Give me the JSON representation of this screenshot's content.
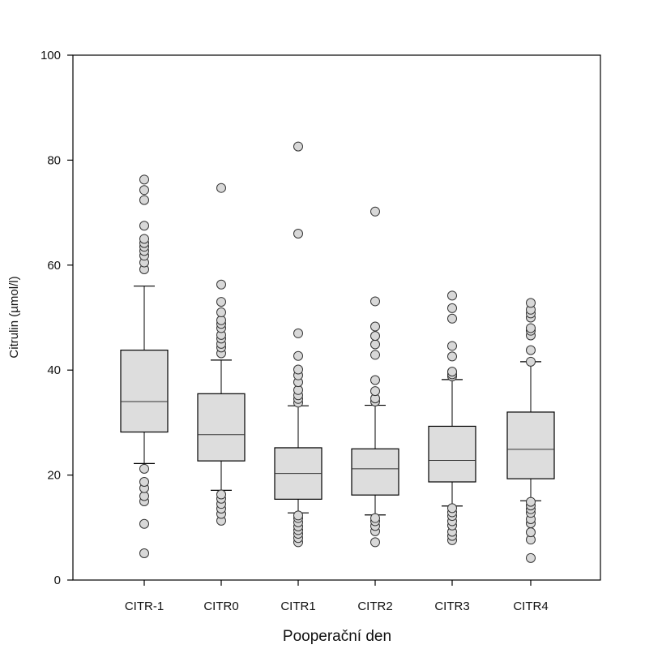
{
  "chart_data": {
    "type": "box",
    "title": "",
    "xlabel": "Pooperační den",
    "ylabel": "Citrulin (µmol/l)",
    "ylim": [
      0,
      100
    ],
    "yticks": [
      0,
      20,
      40,
      60,
      80,
      100
    ],
    "grid": false,
    "categories": [
      "CITR-1",
      "CITR0",
      "CITR1",
      "CITR2",
      "CITR3",
      "CITR4"
    ],
    "boxes": [
      {
        "category": "CITR-1",
        "whisker_low": 22.2,
        "q1": 28.2,
        "median": 34.0,
        "q3": 43.8,
        "whisker_high": 56.0,
        "outliers": [
          5.1,
          10.7,
          15.0,
          16.0,
          17.5,
          18.7,
          21.2,
          59.2,
          60.5,
          61.8,
          62.7,
          63.5,
          64.2,
          65.0,
          67.5,
          72.4,
          74.3,
          76.3
        ]
      },
      {
        "category": "CITR0",
        "whisker_low": 17.1,
        "q1": 22.7,
        "median": 27.7,
        "q3": 35.5,
        "whisker_high": 41.9,
        "outliers": [
          11.3,
          12.6,
          13.6,
          14.5,
          15.5,
          16.3,
          43.2,
          44.3,
          45.0,
          46.0,
          46.7,
          48.0,
          48.8,
          49.5,
          51.0,
          53.0,
          56.3,
          74.7
        ]
      },
      {
        "category": "CITR1",
        "whisker_low": 12.8,
        "q1": 15.4,
        "median": 20.3,
        "q3": 25.2,
        "whisker_high": 33.2,
        "outliers": [
          7.2,
          8.0,
          8.8,
          9.5,
          10.2,
          11.0,
          11.8,
          12.3,
          33.8,
          34.5,
          35.2,
          36.2,
          37.7,
          39.0,
          40.1,
          42.7,
          47.0,
          66.0,
          82.6
        ]
      },
      {
        "category": "CITR2",
        "whisker_low": 12.4,
        "q1": 16.2,
        "median": 21.2,
        "q3": 25.0,
        "whisker_high": 33.3,
        "outliers": [
          7.2,
          9.3,
          10.3,
          11.2,
          11.8,
          34.0,
          34.6,
          36.0,
          38.1,
          42.9,
          44.9,
          46.5,
          48.3,
          53.1,
          70.2
        ]
      },
      {
        "category": "CITR3",
        "whisker_low": 14.1,
        "q1": 18.7,
        "median": 22.8,
        "q3": 29.3,
        "whisker_high": 38.2,
        "outliers": [
          7.6,
          8.4,
          9.2,
          10.4,
          11.2,
          12.2,
          12.9,
          13.7,
          38.8,
          39.2,
          39.7,
          42.6,
          44.6,
          49.8,
          51.8,
          54.2
        ]
      },
      {
        "category": "CITR4",
        "whisker_low": 15.1,
        "q1": 19.3,
        "median": 24.9,
        "q3": 32.0,
        "whisker_high": 41.6,
        "outliers": [
          4.2,
          7.7,
          9.1,
          10.8,
          11.6,
          12.8,
          13.5,
          14.2,
          14.9,
          41.6,
          43.8,
          46.6,
          47.5,
          48.0,
          50.0,
          50.8,
          51.5,
          52.8
        ]
      }
    ],
    "colors": {
      "box_fill": "#dddddd",
      "box_stroke": "#000000",
      "outlier_fill": "#d8d8d8",
      "outlier_stroke": "#333333"
    }
  }
}
